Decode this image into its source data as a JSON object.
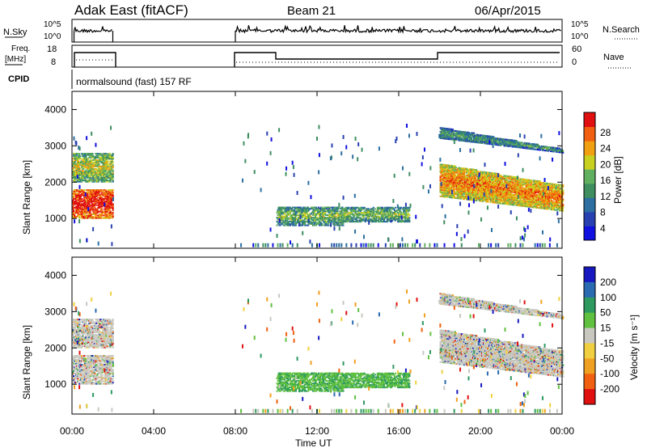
{
  "header": {
    "site": "Adak East (fitACF)",
    "beam": "Beam 21",
    "date": "06/Apr/2015"
  },
  "panels": {
    "nsky_label": "N.Sky",
    "nsearch_label": "N.Search",
    "nsky_ticks": [
      "10^5",
      "10^0"
    ],
    "nsearch_ticks": [
      "10^5",
      "10^0"
    ],
    "freq_label": "Freq.",
    "freq_unit": "[MHz]",
    "freq_ticks": [
      "18",
      "8"
    ],
    "nave_label": "Nave",
    "nave_ticks": [
      "60",
      "0"
    ],
    "cpid_label": "CPID",
    "cpid_text": "normalsound (fast) 157 RF"
  },
  "axes": {
    "ylabel": "Slant Range [km]",
    "xlabel": "Time UT",
    "y_ticks": [
      "1000",
      "2000",
      "3000",
      "4000"
    ],
    "x_ticks": [
      "00:00",
      "04:00",
      "08:00",
      "12:00",
      "16:00",
      "20:00",
      "00:00"
    ]
  },
  "chart_data": [
    {
      "type": "heatmap",
      "name": "power",
      "x_range_hours": [
        0,
        24
      ],
      "y_range_km": [
        180,
        4500
      ],
      "colorbar_label": "Power [dB]",
      "colorbar_ticks": [
        "4",
        "8",
        "12",
        "16",
        "20",
        "24",
        "28"
      ],
      "colors": [
        "#1010e0",
        "#2840b0",
        "#2c6fa0",
        "#3e8e60",
        "#60b060",
        "#c8d020",
        "#f0a010",
        "#f06010",
        "#e01010"
      ],
      "echo_regions": [
        {
          "t": [
            0.0,
            2.0
          ],
          "r": [
            1000,
            1800
          ],
          "level": 0.8
        },
        {
          "t": [
            0.0,
            2.0
          ],
          "r": [
            2000,
            2800
          ],
          "level": 0.4
        },
        {
          "t": [
            10.0,
            16.5
          ],
          "r": [
            800,
            1300
          ],
          "level": 0.3
        },
        {
          "t": [
            18.0,
            24.0
          ],
          "r": [
            1200,
            2500
          ],
          "level": 0.6
        },
        {
          "t": [
            18.0,
            24.0
          ],
          "r": [
            2800,
            3500
          ],
          "level": 0.2
        }
      ]
    },
    {
      "type": "heatmap",
      "name": "velocity",
      "x_range_hours": [
        0,
        24
      ],
      "y_range_km": [
        180,
        4500
      ],
      "colorbar_label": "Velocity [m s⁻¹]",
      "colorbar_ticks": [
        "200",
        "100",
        "50",
        "15",
        "-15",
        "-50",
        "-100",
        "-200"
      ],
      "colors": [
        "#1818c0",
        "#2a6ab0",
        "#2e9a60",
        "#60c040",
        "#c8c8c0",
        "#f0d040",
        "#f0a020",
        "#f06010",
        "#e01010"
      ]
    }
  ]
}
